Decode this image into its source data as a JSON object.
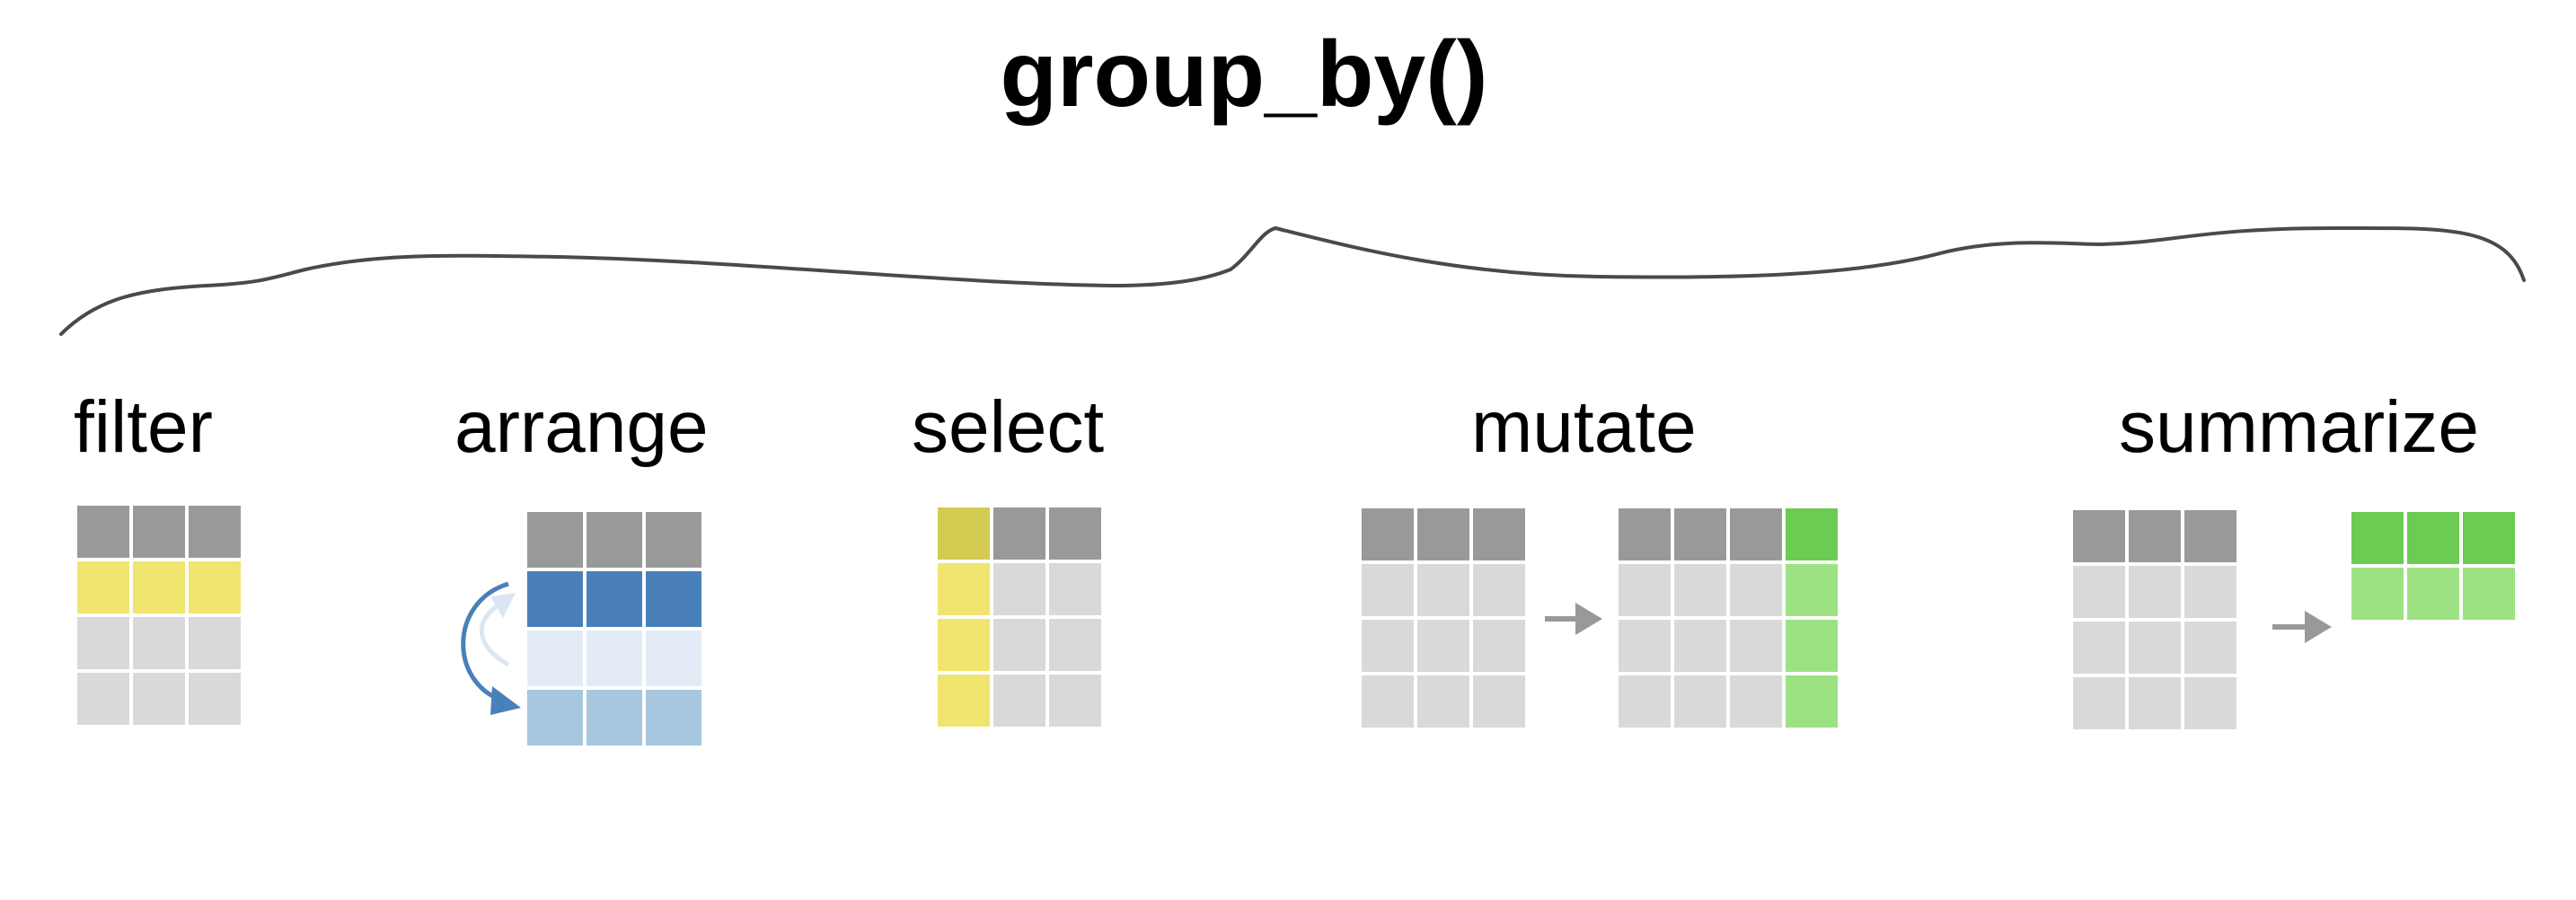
{
  "title": "group_by()",
  "colors": {
    "header": "#999999",
    "cell": "#d9d9d9",
    "yellow": "#efe56f",
    "yellow_dark": "#d3cb52",
    "blue_dark": "#4a80b9",
    "blue_light": "#e3ecf6",
    "blue_mid": "#a6c7dd",
    "green_dark": "#6ccb52",
    "green_light": "#9ce282",
    "arrow": "#999999",
    "brace": "#4a4a4a"
  },
  "verbs": [
    {
      "id": "filter",
      "label": "filter",
      "icon": "filter-rows-icon"
    },
    {
      "id": "arrange",
      "label": "arrange",
      "icon": "arrange-rows-icon"
    },
    {
      "id": "select",
      "label": "select",
      "icon": "select-column-icon"
    },
    {
      "id": "mutate",
      "label": "mutate",
      "icon": "mutate-add-column-icon"
    },
    {
      "id": "summarize",
      "label": "summarize",
      "icon": "summarize-collapse-icon"
    }
  ]
}
